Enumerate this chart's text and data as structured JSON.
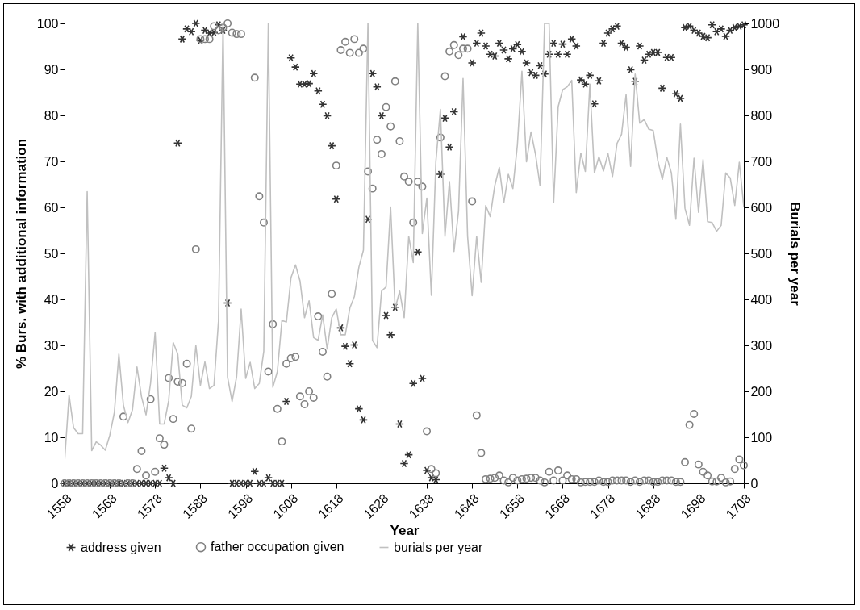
{
  "chart_data": {
    "type": "scatter",
    "xlabel": "Year",
    "ylabel": "% Burs. with additional information",
    "y2label": "Burials per year",
    "legend": "bottom",
    "xlim": [
      1558,
      1708
    ],
    "xticks": [
      1558,
      1568,
      1578,
      1588,
      1598,
      1608,
      1618,
      1628,
      1638,
      1648,
      1658,
      1668,
      1678,
      1688,
      1698,
      1708
    ],
    "ylim": [
      0,
      100
    ],
    "yticks": [
      0,
      10,
      20,
      30,
      40,
      50,
      60,
      70,
      80,
      90,
      100
    ],
    "y2lim": [
      0,
      1000
    ],
    "y2ticks": [
      0,
      100,
      200,
      300,
      400,
      500,
      600,
      700,
      800,
      900,
      1000
    ],
    "x": [
      1558,
      1559,
      1560,
      1561,
      1562,
      1563,
      1564,
      1565,
      1566,
      1567,
      1568,
      1569,
      1570,
      1571,
      1572,
      1573,
      1574,
      1575,
      1576,
      1577,
      1578,
      1579,
      1580,
      1581,
      1582,
      1583,
      1584,
      1585,
      1586,
      1587,
      1588,
      1589,
      1590,
      1591,
      1592,
      1593,
      1594,
      1595,
      1596,
      1597,
      1598,
      1599,
      1600,
      1601,
      1602,
      1603,
      1604,
      1605,
      1606,
      1607,
      1608,
      1609,
      1610,
      1611,
      1612,
      1613,
      1614,
      1615,
      1616,
      1617,
      1618,
      1619,
      1620,
      1621,
      1622,
      1623,
      1624,
      1625,
      1626,
      1627,
      1628,
      1629,
      1630,
      1631,
      1632,
      1633,
      1634,
      1635,
      1636,
      1637,
      1638,
      1639,
      1640,
      1641,
      1642,
      1643,
      1644,
      1645,
      1646,
      1647,
      1648,
      1649,
      1650,
      1651,
      1652,
      1653,
      1654,
      1655,
      1656,
      1657,
      1658,
      1659,
      1660,
      1661,
      1662,
      1663,
      1664,
      1665,
      1666,
      1667,
      1668,
      1669,
      1670,
      1671,
      1672,
      1673,
      1674,
      1675,
      1676,
      1677,
      1678,
      1679,
      1680,
      1681,
      1682,
      1683,
      1684,
      1685,
      1686,
      1687,
      1688,
      1689,
      1690,
      1691,
      1692,
      1693,
      1694,
      1695,
      1696,
      1697,
      1698,
      1699,
      1700,
      1701,
      1702,
      1703,
      1704,
      1705,
      1706,
      1707,
      1708
    ],
    "series": [
      {
        "name": "address given",
        "marker": "cross",
        "color": "#333333",
        "values": [
          0,
          0,
          0,
          0,
          0,
          0,
          0,
          0,
          0,
          0,
          0,
          0,
          0,
          0,
          0,
          0,
          0,
          0,
          0,
          0,
          0,
          0,
          3.3,
          1.2,
          0,
          74,
          96.6,
          98.8,
          98.2,
          100,
          96.3,
          98.5,
          97.9,
          98,
          99.7,
          98.5,
          39.2,
          0,
          0,
          0,
          0,
          0,
          2.6,
          0,
          0,
          1.2,
          0,
          0,
          0,
          17.8,
          92.5,
          90.5,
          86.8,
          86.8,
          86.9,
          89.1,
          85.3,
          82.4,
          79.9,
          73.4,
          61.8,
          33.8,
          29.8,
          26,
          30.1,
          16.2,
          13.8,
          57.4,
          89.1,
          86.2,
          79.9,
          36.5,
          32.3,
          38.3,
          12.9,
          4.3,
          6.2,
          21.7,
          50.3,
          22.8,
          2.8,
          1.2,
          0.8,
          67.2,
          79.4,
          73.1,
          80.8,
          null,
          97.1,
          null,
          91.4,
          95.7,
          97.9,
          95.1,
          93.3,
          92.9,
          95.7,
          94.2,
          92.3,
          94.5,
          95.4,
          93.9,
          91.4,
          89.3,
          88.7,
          90.8,
          89,
          93.3,
          95.7,
          93.3,
          95.5,
          93.3,
          96.6,
          95.1,
          87.7,
          86.8,
          88.7,
          82.5,
          87.5,
          95.7,
          97.9,
          98.8,
          99.4,
          95.7,
          94.8,
          89.9,
          87.4,
          95.1,
          92,
          93.3,
          93.7,
          93.7,
          85.9,
          92.6,
          92.6,
          84.7,
          83.7,
          99.1,
          99.4,
          98.5,
          97.9,
          97.2,
          96.9,
          99.7,
          98.2,
          98.8,
          97.2,
          98.5,
          99.1,
          99.4,
          99.7
        ]
      },
      {
        "name": "father occupation given",
        "marker": "circle",
        "color": "#808080",
        "values": [
          0,
          0,
          0,
          0,
          0,
          0,
          0,
          0,
          0,
          0,
          0,
          0,
          0,
          14.5,
          0,
          0,
          3.1,
          7,
          1.7,
          18.3,
          2.5,
          9.8,
          8.4,
          22.9,
          14,
          22.1,
          21.8,
          26,
          11.9,
          50.9,
          96.6,
          96.6,
          96.6,
          99.4,
          98.5,
          99.1,
          100,
          98,
          97.7,
          97.7,
          null,
          null,
          88.2,
          62.4,
          56.7,
          24.3,
          34.6,
          16.2,
          9.1,
          26,
          27.2,
          27.5,
          18.9,
          17.2,
          20,
          18.6,
          36.3,
          28.6,
          23.2,
          41.2,
          69.1,
          94.2,
          96,
          93.6,
          96.6,
          93.6,
          94.5,
          67.8,
          64.1,
          74.7,
          71.6,
          81.8,
          77.6,
          87.4,
          74.4,
          66.7,
          65.6,
          56.7,
          65.6,
          64.5,
          11.3,
          3.1,
          2.2,
          75.2,
          88.5,
          93.9,
          95.3,
          93.1,
          94.5,
          94.5,
          61.3,
          14.8,
          6.6,
          0.9,
          1,
          1.2,
          1.7,
          0.6,
          0.2,
          1.2,
          0.6,
          0.9,
          1,
          1.2,
          1.2,
          0.6,
          0.2,
          2.5,
          0.6,
          2.8,
          0.6,
          1.7,
          0.9,
          0.9,
          0.2,
          0.3,
          0.3,
          0.3,
          0.6,
          0.3,
          0.3,
          0.6,
          0.6,
          0.6,
          0.6,
          0.3,
          0.6,
          0.3,
          0.6,
          0.6,
          0.3,
          0.3,
          0.6,
          0.6,
          0.6,
          0.3,
          0.3,
          4.6,
          12.7,
          15.1,
          4.1,
          2.5,
          1.7,
          0.4,
          0.4,
          1.2,
          0.2,
          0.4,
          3.1,
          5.2,
          3.9
        ]
      },
      {
        "name": "burials per year",
        "type": "line",
        "axis": "y2",
        "color": "#c0c0c0",
        "values": [
          46,
          192,
          121,
          108,
          108,
          634,
          71,
          90,
          83,
          72,
          105,
          154,
          281,
          170,
          132,
          160,
          253,
          188,
          149,
          218,
          328,
          129,
          129,
          180,
          306,
          281,
          170,
          164,
          189,
          300,
          213,
          264,
          206,
          213,
          354,
          1000,
          231,
          178,
          232,
          379,
          228,
          263,
          206,
          217,
          287,
          1000,
          209,
          243,
          354,
          351,
          447,
          475,
          440,
          360,
          397,
          317,
          311,
          366,
          292,
          360,
          379,
          323,
          323,
          381,
          406,
          470,
          507,
          1000,
          311,
          295,
          418,
          427,
          601,
          380,
          418,
          360,
          537,
          480,
          1000,
          543,
          620,
          409,
          700,
          813,
          537,
          656,
          504,
          592,
          880,
          537,
          408,
          537,
          437,
          604,
          580,
          647,
          687,
          610,
          672,
          641,
          736,
          896,
          699,
          764,
          715,
          647,
          1000,
          1000,
          610,
          819,
          856,
          862,
          876,
          632,
          718,
          678,
          868,
          675,
          710,
          679,
          717,
          667,
          739,
          759,
          845,
          689,
          890,
          783,
          791,
          770,
          767,
          702,
          661,
          709,
          675,
          574,
          781,
          598,
          561,
          707,
          589,
          704,
          569,
          567,
          548,
          561,
          675,
          664,
          604,
          698,
          601
        ]
      }
    ]
  }
}
